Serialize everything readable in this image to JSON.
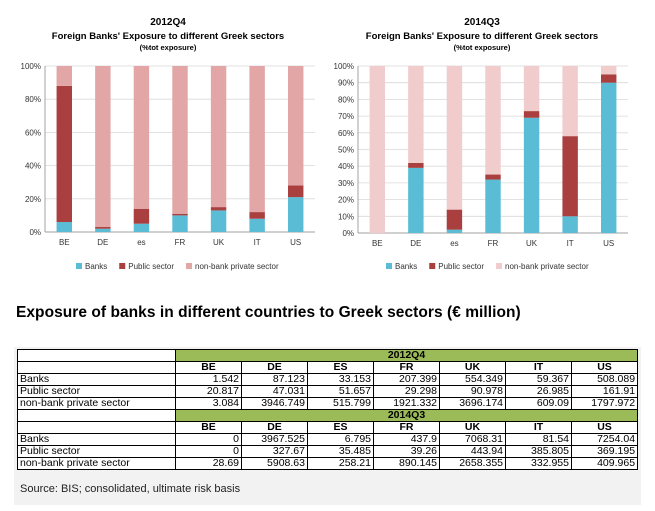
{
  "chart_data": [
    {
      "type": "bar",
      "stacked": true,
      "title": "2012Q4",
      "subtitle": "Foreign Banks' Exposure to different Greek sectors",
      "note": "(%tot exposure)",
      "categories": [
        "BE",
        "DE",
        "es",
        "FR",
        "UK",
        "IT",
        "US"
      ],
      "yticks": [
        "0%",
        "20%",
        "40%",
        "60%",
        "80%",
        "100%"
      ],
      "ylim": [
        0,
        100
      ],
      "grid": true,
      "legend": "bottom",
      "series": [
        {
          "name": "Banks",
          "color": "#5bbcd6",
          "values": [
            6,
            2,
            5,
            10,
            13,
            8,
            21
          ]
        },
        {
          "name": "Public sector",
          "color": "#a93f3f",
          "values": [
            82,
            1,
            9,
            1,
            2,
            4,
            7
          ]
        },
        {
          "name": "non-bank private sector",
          "color": "#e2a6a6",
          "values": [
            12,
            97,
            86,
            89,
            85,
            88,
            72
          ]
        }
      ]
    },
    {
      "type": "bar",
      "stacked": true,
      "title": "2014Q3",
      "subtitle": "Foreign Banks' Exposure to different Greek sectors",
      "note": "(%tot exposure)",
      "categories": [
        "BE",
        "DE",
        "es",
        "FR",
        "UK",
        "IT",
        "US"
      ],
      "yticks": [
        "0%",
        "10%",
        "20%",
        "30%",
        "40%",
        "50%",
        "60%",
        "70%",
        "80%",
        "90%",
        "100%"
      ],
      "ylim": [
        0,
        100
      ],
      "grid": true,
      "legend": "bottom",
      "series": [
        {
          "name": "Banks",
          "color": "#5bbcd6",
          "values": [
            0,
            39,
            2,
            32,
            69,
            10,
            90
          ]
        },
        {
          "name": "Public sector",
          "color": "#a93f3f",
          "values": [
            0,
            3,
            12,
            3,
            4,
            48,
            5
          ]
        },
        {
          "name": "non-bank private sector",
          "color": "#f1cccc",
          "values": [
            100,
            58,
            86,
            65,
            27,
            42,
            5
          ]
        }
      ]
    }
  ],
  "main_title": "Exposure of banks in different countries to Greek sectors (€ million)",
  "table": {
    "columns": [
      "BE",
      "DE",
      "ES",
      "FR",
      "UK",
      "IT",
      "US"
    ],
    "periods": [
      {
        "label": "2012Q4",
        "rows": [
          {
            "label": "Banks",
            "values": [
              "1.542",
              "87.123",
              "33.153",
              "207.399",
              "554.349",
              "59.367",
              "508.089"
            ]
          },
          {
            "label": "Public sector",
            "values": [
              "20.817",
              "47.031",
              "51.657",
              "29.298",
              "90.978",
              "26.985",
              "161.91"
            ]
          },
          {
            "label": "non-bank private sector",
            "values": [
              "3.084",
              "3946.749",
              "515.799",
              "1921.332",
              "3696.174",
              "609.09",
              "1797.972"
            ]
          }
        ]
      },
      {
        "label": "2014Q3",
        "rows": [
          {
            "label": "Banks",
            "values": [
              "0",
              "3967.525",
              "6.795",
              "437.9",
              "7068.31",
              "81.54",
              "7254.04"
            ]
          },
          {
            "label": "Public sector",
            "values": [
              "0",
              "327.67",
              "35.485",
              "39.26",
              "443.94",
              "385.805",
              "369.195"
            ]
          },
          {
            "label": "non-bank private sector",
            "values": [
              "28.69",
              "5908.63",
              "258.21",
              "890.145",
              "2658.355",
              "332.955",
              "409.965"
            ]
          }
        ]
      }
    ]
  },
  "source": "Source: BIS; consolidated, ultimate risk basis"
}
